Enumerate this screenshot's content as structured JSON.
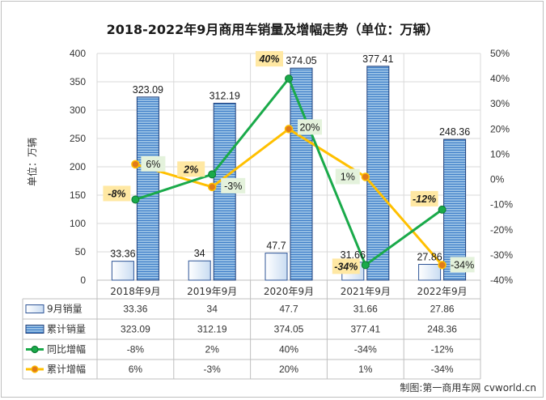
{
  "chart_data": {
    "type": "bar",
    "title": "2018-2022年9月商用车销量及增幅走势（单位：万辆）",
    "ylabel": "单位：万辆",
    "categories": [
      "2018年9月",
      "2019年9月",
      "2020年9月",
      "2021年9月",
      "2022年9月"
    ],
    "ylim": [
      0,
      400
    ],
    "y_ticks": [
      "0",
      "50",
      "100",
      "150",
      "200",
      "250",
      "300",
      "350",
      "400"
    ],
    "y2lim": [
      -40,
      50
    ],
    "y2_ticks": [
      "-40%",
      "-30%",
      "-20%",
      "-10%",
      "0%",
      "10%",
      "20%",
      "30%",
      "40%",
      "50%"
    ],
    "grid": true,
    "legend": "bottom data table",
    "series": [
      {
        "name": "9月销量",
        "kind": "bar",
        "axis": "left",
        "values": [
          33.36,
          34,
          47.7,
          31.66,
          27.86
        ],
        "labels": [
          "33.36",
          "34",
          "47.7",
          "31.66",
          "27.86"
        ],
        "color": "#2f6fb5"
      },
      {
        "name": "累计销量",
        "kind": "bar",
        "axis": "left",
        "values": [
          323.09,
          312.19,
          374.05,
          377.41,
          248.36
        ],
        "labels": [
          "323.09",
          "312.19",
          "374.05",
          "377.41",
          "248.36"
        ],
        "color": "#1f5aa0"
      },
      {
        "name": "同比增幅",
        "kind": "line",
        "axis": "right",
        "values": [
          -8,
          2,
          40,
          -34,
          -12
        ],
        "labels": [
          "-8%",
          "2%",
          "40%",
          "-34%",
          "-12%"
        ],
        "color": "#1aaa4a"
      },
      {
        "name": "累计增幅",
        "kind": "line",
        "axis": "right",
        "values": [
          6,
          -3,
          20,
          1,
          -34
        ],
        "labels": [
          "6%",
          "-3%",
          "20%",
          "1%",
          "-34%"
        ],
        "color": "#ffc000"
      }
    ]
  },
  "credit": "制图:第一商用车网 cvworld.cn"
}
